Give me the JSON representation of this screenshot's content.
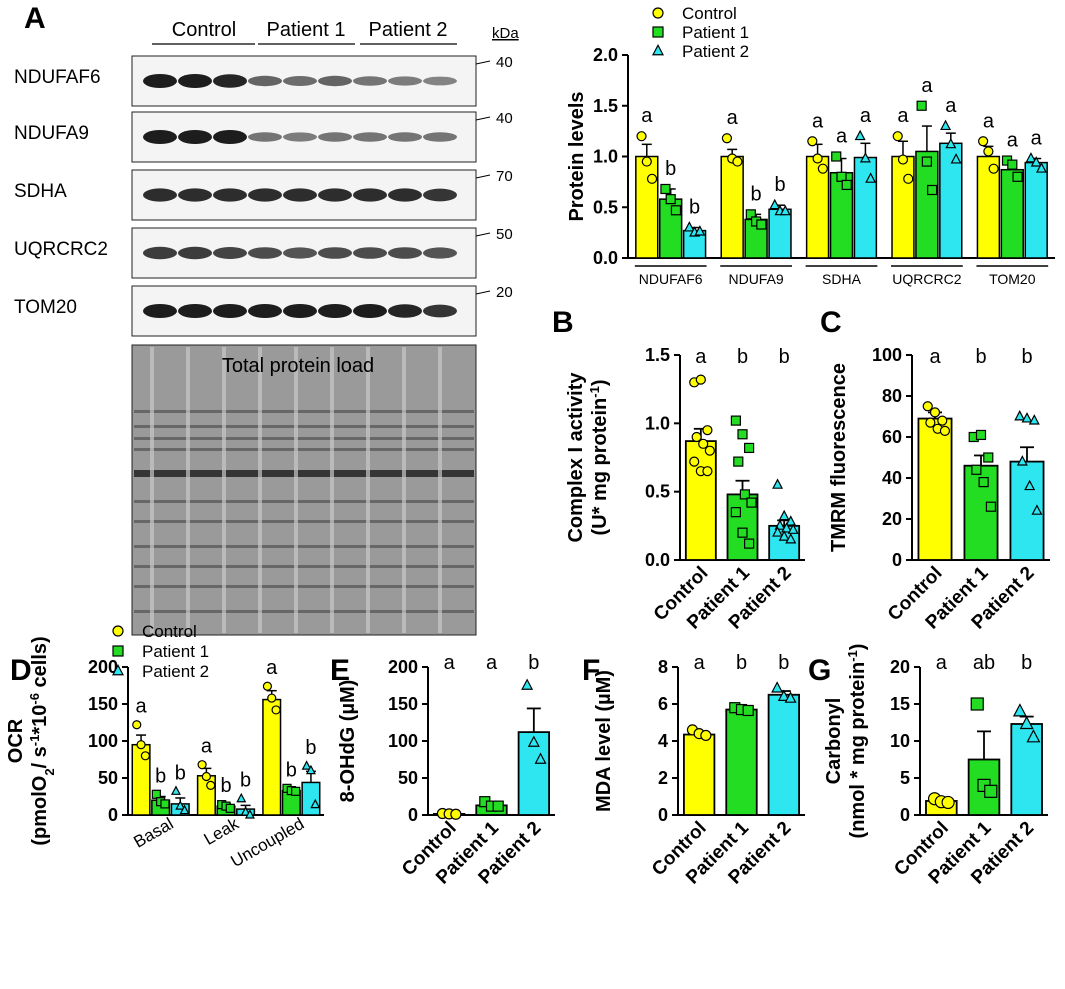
{
  "colors": {
    "control": "#ffff00",
    "patient1": "#22dd22",
    "patient2": "#2ee6f0",
    "axis": "#000000"
  },
  "groups": [
    "Control",
    "Patient 1",
    "Patient 2"
  ],
  "panel_labels": {
    "A": "A",
    "B": "B",
    "C": "C",
    "D": "D",
    "E": "E",
    "F": "F",
    "G": "G"
  },
  "blot": {
    "group_headers": [
      "Control",
      "Patient 1",
      "Patient 2"
    ],
    "kda_header": "kDa",
    "bands": [
      {
        "name": "NDUFAF6",
        "kda": "40"
      },
      {
        "name": "NDUFA9",
        "kda": "40"
      },
      {
        "name": "SDHA",
        "kda": "70"
      },
      {
        "name": "UQRCRC2",
        "kda": "50"
      },
      {
        "name": "TOM20",
        "kda": "20"
      }
    ],
    "total_protein_label": "Total protein load"
  },
  "chart_data": [
    {
      "id": "A",
      "type": "bar",
      "ylabel": "Protein levels",
      "ylim": [
        0,
        2.0
      ],
      "yticks": [
        "0.0",
        "0.5",
        "1.0",
        "1.5",
        "2.0"
      ],
      "categories": [
        "NDUFAF6",
        "NDUFA9",
        "SDHA",
        "UQRCRC2",
        "TOM20"
      ],
      "legend": [
        "Control",
        "Patient 1",
        "Patient 2"
      ],
      "series": [
        {
          "name": "Control",
          "values": [
            1.0,
            1.0,
            1.0,
            1.0,
            1.0
          ],
          "errors": [
            0.12,
            0.07,
            0.12,
            0.15,
            0.1
          ],
          "points": [
            [
              1.2,
              0.95,
              0.78
            ],
            [
              1.18,
              0.98,
              0.95
            ],
            [
              1.15,
              0.98,
              0.88
            ],
            [
              1.2,
              0.97,
              0.78
            ],
            [
              1.15,
              1.05,
              0.88
            ]
          ],
          "letters": [
            "a",
            "a",
            "a",
            "a",
            "a"
          ]
        },
        {
          "name": "Patient 1",
          "values": [
            0.58,
            0.38,
            0.84,
            1.05,
            0.87
          ],
          "errors": [
            0.1,
            0.05,
            0.14,
            0.25,
            0.06
          ],
          "points": [
            [
              0.68,
              0.58,
              0.47
            ],
            [
              0.43,
              0.36,
              0.33
            ],
            [
              1.0,
              0.8,
              0.72
            ],
            [
              1.5,
              0.95,
              0.67
            ],
            [
              0.96,
              0.92,
              0.8
            ]
          ],
          "letters": [
            "b",
            "b",
            "a",
            "a",
            "a"
          ]
        },
        {
          "name": "Patient 2",
          "values": [
            0.27,
            0.48,
            0.99,
            1.13,
            0.94
          ],
          "errors": [
            0.03,
            0.04,
            0.14,
            0.1,
            0.04
          ],
          "points": [
            [
              0.3,
              0.25,
              0.26
            ],
            [
              0.52,
              0.46,
              0.46
            ],
            [
              1.2,
              0.98,
              0.78
            ],
            [
              1.3,
              1.12,
              0.97
            ],
            [
              0.98,
              0.94,
              0.88
            ]
          ],
          "letters": [
            "b",
            "b",
            "a",
            "a",
            "a"
          ]
        }
      ]
    },
    {
      "id": "B",
      "type": "bar",
      "ylabel": "Complex I activity",
      "ylabel2": "(U* mg protein",
      "ylabel2_sup": "-1",
      "ylabel2_end": ")",
      "ylim": [
        0,
        1.5
      ],
      "yticks": [
        "0.0",
        "0.5",
        "1.0",
        "1.5"
      ],
      "categories": [
        "Control",
        "Patient 1",
        "Patient 2"
      ],
      "values": [
        0.87,
        0.48,
        0.25
      ],
      "errors": [
        0.09,
        0.1,
        0.04
      ],
      "letters": [
        "a",
        "b",
        "b"
      ],
      "points": [
        [
          1.3,
          1.32,
          0.95,
          0.9,
          0.85,
          0.8,
          0.72,
          0.65,
          0.65
        ],
        [
          1.02,
          0.92,
          0.82,
          0.72,
          0.48,
          0.42,
          0.35,
          0.2,
          0.12
        ],
        [
          0.55,
          0.32,
          0.28,
          0.25,
          0.23,
          0.22,
          0.2,
          0.17,
          0.15
        ]
      ]
    },
    {
      "id": "C",
      "type": "bar",
      "ylabel": "TMRM fluorescence",
      "ylim": [
        0,
        100
      ],
      "yticks": [
        "0",
        "20",
        "40",
        "60",
        "80",
        "100"
      ],
      "categories": [
        "Control",
        "Patient 1",
        "Patient 2"
      ],
      "values": [
        69,
        46,
        48
      ],
      "errors": [
        3,
        5,
        7
      ],
      "letters": [
        "a",
        "b",
        "b"
      ],
      "points": [
        [
          75,
          72,
          68,
          67,
          64,
          63
        ],
        [
          60,
          61,
          50,
          44,
          38,
          26
        ],
        [
          70,
          69,
          68,
          48,
          36,
          24
        ]
      ]
    },
    {
      "id": "D",
      "type": "bar",
      "ylabel": "OCR",
      "ylabel2": "(pmolO",
      "ylabel2_sub": "2",
      "ylabel2_mid": "/ s",
      "ylabel2_sup": "-1",
      "ylabel2_mid2": "*10",
      "ylabel2_sup2": "-6",
      "ylabel2_end": " cells)",
      "ylim": [
        0,
        200
      ],
      "yticks": [
        "0",
        "50",
        "100",
        "150",
        "200"
      ],
      "categories": [
        "Basal",
        "Leak",
        "Uncoupled"
      ],
      "legend": [
        "Control",
        "Patient 1",
        "Patient 2"
      ],
      "series": [
        {
          "name": "Control",
          "values": [
            95,
            53,
            156
          ],
          "errors": [
            13,
            10,
            12
          ],
          "points": [
            [
              122,
              95,
              80
            ],
            [
              68,
              52,
              40
            ],
            [
              174,
              158,
              142
            ]
          ],
          "letters": [
            "a",
            "a",
            "a"
          ]
        },
        {
          "name": "Patient 1",
          "values": [
            20,
            12,
            33
          ],
          "errors": [
            5,
            3,
            3
          ],
          "points": [
            [
              28,
              18,
              15
            ],
            [
              14,
              12,
              9
            ],
            [
              36,
              33,
              32
            ]
          ],
          "letters": [
            "b",
            "b",
            "b"
          ]
        },
        {
          "name": "Patient 2",
          "values": [
            15,
            8,
            44
          ],
          "errors": [
            8,
            5,
            15
          ],
          "points": [
            [
              32,
              12,
              6
            ],
            [
              22,
              4,
              0
            ],
            [
              66,
              60,
              14
            ]
          ],
          "letters": [
            "b",
            "b",
            "b"
          ]
        }
      ]
    },
    {
      "id": "E",
      "type": "bar",
      "ylabel": "8-OHdG (µM)",
      "ylim": [
        0,
        200
      ],
      "yticks": [
        "0",
        "50",
        "100",
        "150",
        "200"
      ],
      "categories": [
        "Control",
        "Patient 1",
        "Patient 2"
      ],
      "values": [
        1.5,
        13,
        112
      ],
      "errors": [
        0.5,
        3,
        32
      ],
      "letters": [
        "a",
        "a",
        "b"
      ],
      "points": [
        [
          2,
          1.5,
          1
        ],
        [
          18,
          12,
          12
        ],
        [
          175,
          98,
          75
        ]
      ]
    },
    {
      "id": "F",
      "type": "bar",
      "ylabel": "MDA level (µM)",
      "ylim": [
        0,
        8
      ],
      "yticks": [
        "0",
        "2",
        "4",
        "6",
        "8"
      ],
      "categories": [
        "Control",
        "Patient 1",
        "Patient 2"
      ],
      "values": [
        4.35,
        5.7,
        6.5
      ],
      "errors": [
        0.15,
        0.1,
        0.2
      ],
      "letters": [
        "a",
        "b",
        "b"
      ],
      "points": [
        [
          4.6,
          4.4,
          4.3
        ],
        [
          5.8,
          5.7,
          5.65
        ],
        [
          6.85,
          6.4,
          6.3
        ]
      ]
    },
    {
      "id": "G",
      "type": "bar",
      "ylabel": "Carbonyl",
      "ylabel2": "(nmol * mg protein",
      "ylabel2_sup": "-1",
      "ylabel2_end": ")",
      "ylim": [
        0,
        20
      ],
      "yticks": [
        "0",
        "5",
        "10",
        "15",
        "20"
      ],
      "categories": [
        "Control",
        "Patient 1",
        "Patient 2"
      ],
      "values": [
        1.9,
        7.5,
        12.3
      ],
      "errors": [
        0.2,
        3.8,
        1.0
      ],
      "letters": [
        "a",
        "ab",
        "b"
      ],
      "points": [
        [
          2.2,
          1.8,
          1.7
        ],
        [
          15,
          4,
          3.2
        ],
        [
          14,
          12.3,
          10.5
        ]
      ]
    }
  ]
}
